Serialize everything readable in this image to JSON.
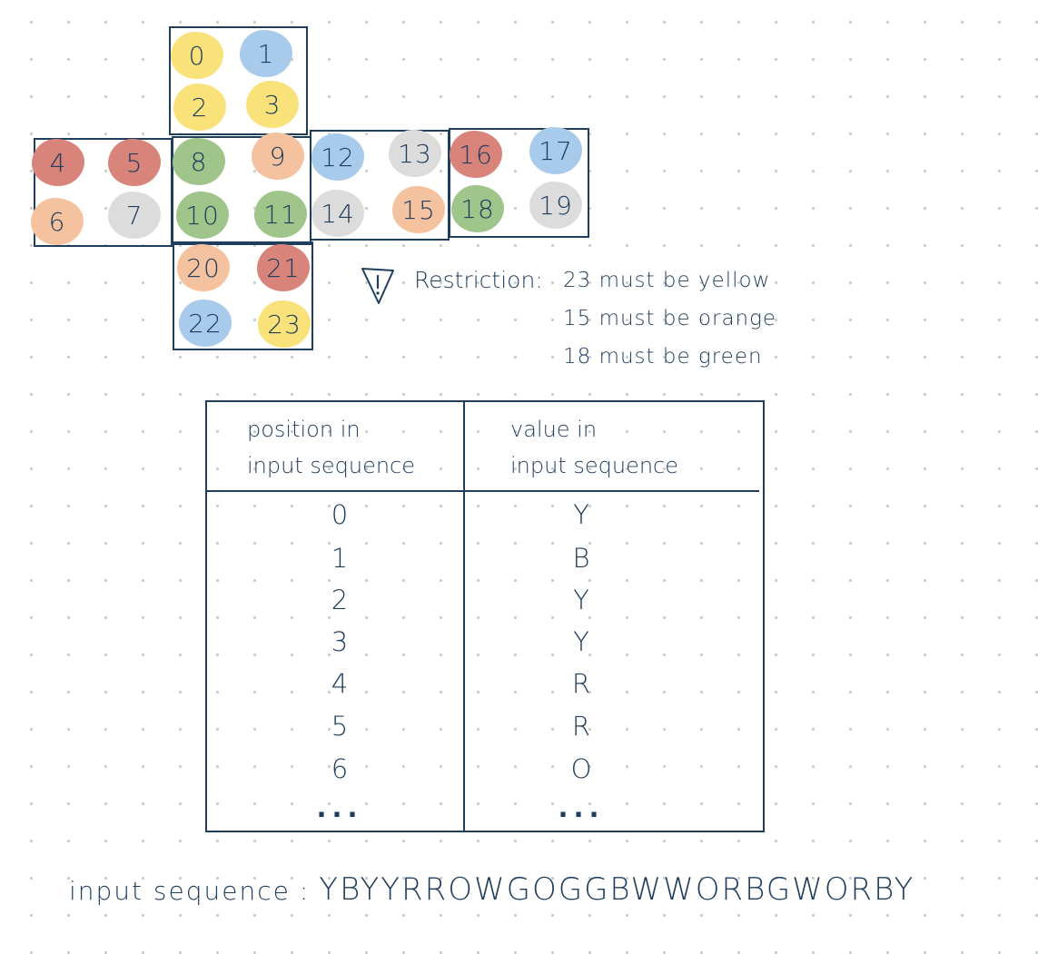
{
  "colors": {
    "ink": "#1f3d5c",
    "yellow": "#f9e27a",
    "blue": "#a9cbeb",
    "red": "#d9847a",
    "orange": "#f5c2a0",
    "white": "#dcdcdc",
    "green": "#9fc58a"
  },
  "cube_net": {
    "faces": [
      "U",
      "L",
      "F",
      "R",
      "B",
      "D"
    ],
    "stickers": [
      {
        "label": "0",
        "color": "yellow"
      },
      {
        "label": "1",
        "color": "blue"
      },
      {
        "label": "2",
        "color": "yellow"
      },
      {
        "label": "3",
        "color": "yellow"
      },
      {
        "label": "4",
        "color": "red"
      },
      {
        "label": "5",
        "color": "red"
      },
      {
        "label": "6",
        "color": "orange"
      },
      {
        "label": "7",
        "color": "white"
      },
      {
        "label": "8",
        "color": "green"
      },
      {
        "label": "9",
        "color": "orange"
      },
      {
        "label": "10",
        "color": "green"
      },
      {
        "label": "11",
        "color": "green"
      },
      {
        "label": "12",
        "color": "blue"
      },
      {
        "label": "13",
        "color": "white"
      },
      {
        "label": "14",
        "color": "white"
      },
      {
        "label": "15",
        "color": "orange"
      },
      {
        "label": "16",
        "color": "red"
      },
      {
        "label": "17",
        "color": "blue"
      },
      {
        "label": "18",
        "color": "green"
      },
      {
        "label": "19",
        "color": "white"
      },
      {
        "label": "20",
        "color": "orange"
      },
      {
        "label": "21",
        "color": "red"
      },
      {
        "label": "22",
        "color": "blue"
      },
      {
        "label": "23",
        "color": "yellow"
      }
    ]
  },
  "restriction": {
    "icon": "warning-icon",
    "label": "Restriction:",
    "rules": [
      "23 must be yellow",
      "15 must be orange",
      "18 must be green"
    ]
  },
  "table": {
    "header_position": [
      "position in",
      "input sequence"
    ],
    "header_value": [
      "value in",
      "input sequence"
    ],
    "rows": [
      {
        "position": "0",
        "value": "Y"
      },
      {
        "position": "1",
        "value": "B"
      },
      {
        "position": "2",
        "value": "Y"
      },
      {
        "position": "3",
        "value": "Y"
      },
      {
        "position": "4",
        "value": "R"
      },
      {
        "position": "5",
        "value": "R"
      },
      {
        "position": "6",
        "value": "O"
      },
      {
        "position": "...",
        "value": "..."
      }
    ]
  },
  "input_sequence": {
    "label": "input sequence",
    "separator": ":",
    "value": "YBYYRROWGOGGBWWORBGWORBY"
  }
}
